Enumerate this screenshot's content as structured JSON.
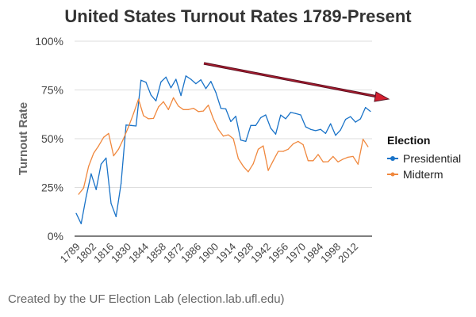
{
  "chart_data": {
    "type": "line",
    "title": "United States Turnout Rates 1789-Present",
    "xlabel": "",
    "ylabel": "Turnout Rate",
    "ylim": [
      0,
      100
    ],
    "xlim": [
      1788,
      2024
    ],
    "yticks": [
      "0%",
      "25%",
      "50%",
      "75%",
      "100%"
    ],
    "ytick_values": [
      0,
      25,
      50,
      75,
      100
    ],
    "xticks": [
      "1789",
      "1802",
      "1816",
      "1830",
      "1844",
      "1858",
      "1872",
      "1886",
      "1900",
      "1914",
      "1928",
      "1942",
      "1956",
      "1970",
      "1984",
      "1998",
      "2012"
    ],
    "grid": true,
    "legend": {
      "title": "Election",
      "placement": "right"
    },
    "series": [
      {
        "name": "Presidential",
        "color": "#1a73c8",
        "start_year": 1788,
        "step": 4,
        "values": [
          11.7,
          6.4,
          20.2,
          32,
          23.9,
          36.9,
          40.1,
          16.8,
          10,
          27,
          57,
          56.8,
          56.5,
          80,
          78.9,
          72.4,
          69.4,
          79.1,
          81.6,
          76.1,
          80.5,
          72.1,
          82.2,
          80.5,
          78.2,
          80.2,
          75.7,
          79.4,
          73.7,
          65.6,
          65.3,
          58.8,
          61.5,
          49.3,
          48.6,
          56.8,
          56.8,
          60.8,
          62.2,
          55.4,
          52.3,
          62.1,
          60.2,
          63.5,
          62.9,
          62.2,
          56.1,
          54.8,
          54.1,
          54.8,
          52.7,
          57.7,
          51.7,
          54.5,
          59.9,
          61.3,
          58.5,
          60.2,
          66,
          64
        ]
      },
      {
        "name": "Midterm",
        "color": "#f0883e",
        "start_year": 1790,
        "step": 4,
        "values": [
          21.5,
          24.7,
          35.8,
          42.5,
          46.3,
          50.7,
          52.7,
          41.2,
          44.6,
          50,
          56.1,
          62.9,
          70.3,
          61.8,
          60.2,
          60.4,
          66.3,
          69,
          64.9,
          71,
          66.7,
          64.9,
          64.9,
          65.6,
          63.9,
          64.2,
          67.2,
          60.2,
          54.8,
          51.3,
          52,
          50,
          39.8,
          35.8,
          33,
          37.1,
          44.6,
          46.3,
          33.7,
          38.7,
          43.5,
          43.5,
          44.6,
          47.3,
          48.6,
          46.9,
          38.7,
          38.7,
          41.9,
          38.1,
          38.2,
          40.9,
          38.1,
          39.5,
          40.5,
          40.9,
          36.9,
          49.7,
          45.9
        ]
      }
    ],
    "annotation": {
      "type": "trend-arrow",
      "from": [
        1890,
        83
      ],
      "to": [
        2024,
        71
      ],
      "color": "#b01c2e"
    }
  },
  "footer": "Created by the UF Election Lab (election.lab.ufl.edu)"
}
